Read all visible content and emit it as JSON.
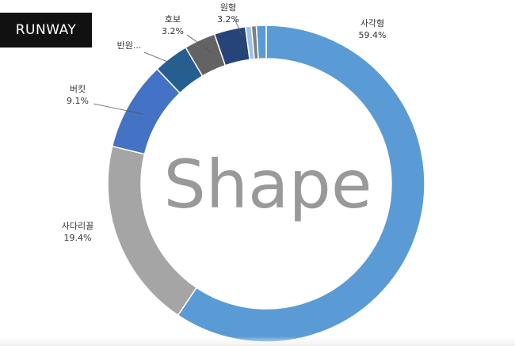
{
  "brand": {
    "label": "RUNWAY"
  },
  "chart_data": {
    "type": "pie",
    "title": "",
    "center_text": "Shape",
    "hole": true,
    "slices": [
      {
        "name": "사각형",
        "value": 59.4,
        "label": "59.4%",
        "color": "#5b9bd5"
      },
      {
        "name": "사다리꼴",
        "value": 19.4,
        "label": "19.4%",
        "color": "#a5a5a5"
      },
      {
        "name": "버킷",
        "value": 9.1,
        "label": "9.1%",
        "color": "#4472c4"
      },
      {
        "name": "반원...",
        "value": 3.6,
        "label": "",
        "color": "#255e91"
      },
      {
        "name": "호보",
        "value": 3.2,
        "label": "3.2%",
        "color": "#636363"
      },
      {
        "name": "원형",
        "value": 3.2,
        "label": "3.2%",
        "color": "#264478"
      },
      {
        "name": "",
        "value": 0.6,
        "label": "",
        "color": "#9dc3e6"
      },
      {
        "name": "",
        "value": 0.5,
        "label": "",
        "color": "#7f7f7f"
      },
      {
        "name": "",
        "value": 1.0,
        "label": "",
        "color": "#5b9bd5"
      }
    ]
  }
}
